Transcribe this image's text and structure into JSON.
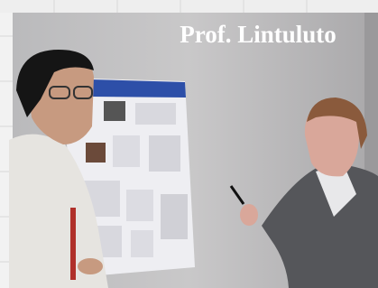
{
  "caption": "Prof. Lintuluto"
}
